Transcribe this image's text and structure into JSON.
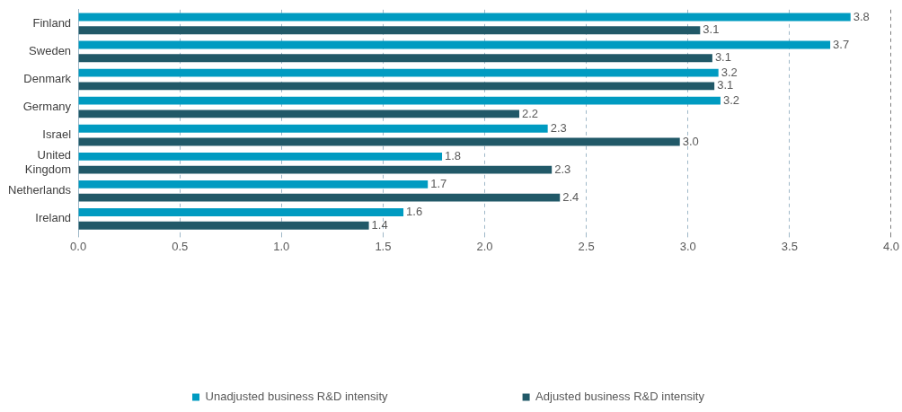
{
  "chart_data": {
    "type": "bar",
    "orientation": "horizontal",
    "categories": [
      "Finland",
      "Sweden",
      "Denmark",
      "Germany",
      "Israel",
      "United Kingdom",
      "Netherlands",
      "Ireland"
    ],
    "series": [
      {
        "name": "Unadjusted business R&D intensity",
        "color": "#009bc1",
        "values": [
          3.8,
          3.7,
          3.15,
          3.16,
          2.31,
          1.79,
          1.72,
          1.6
        ],
        "value_labels": [
          "3.8",
          "3.7",
          "3.2",
          "3.2",
          "2.3",
          "1.8",
          "1.7",
          "1.6"
        ]
      },
      {
        "name": "Adjusted business R&D intensity",
        "color": "#215968",
        "values": [
          3.06,
          3.12,
          3.13,
          2.17,
          2.96,
          2.33,
          2.37,
          1.43
        ],
        "value_labels": [
          "3.1",
          "3.1",
          "3.1",
          "2.2",
          "3.0",
          "2.3",
          "2.4",
          "1.4"
        ]
      }
    ],
    "xlim": [
      0,
      4
    ],
    "xticks": [
      {
        "value": 0,
        "label": "0.0"
      },
      {
        "value": 0.5,
        "label": "0.5"
      },
      {
        "value": 1,
        "label": "1.0"
      },
      {
        "value": 1.5,
        "label": "1.5"
      },
      {
        "value": 2,
        "label": "2.0"
      },
      {
        "value": 2.5,
        "label": "2.5"
      },
      {
        "value": 3,
        "label": "3.0"
      },
      {
        "value": 3.5,
        "label": "3.5"
      },
      {
        "value": 4,
        "label": "4.0"
      }
    ],
    "grid": "x",
    "legend": "bottom"
  }
}
